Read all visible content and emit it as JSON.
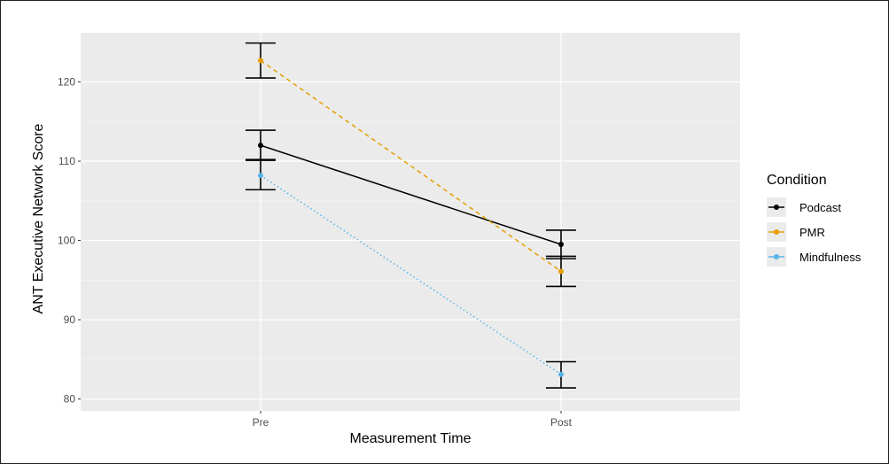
{
  "chart_data": {
    "type": "line",
    "xlabel": "Measurement Time",
    "ylabel": "ANT Executive Network Score",
    "categories": [
      "Pre",
      "Post"
    ],
    "ylim": [
      78.5,
      126.2
    ],
    "yticks": [
      80,
      90,
      100,
      110,
      120
    ],
    "grid": true,
    "legend": {
      "title": "Condition",
      "placement": "right"
    },
    "series": [
      {
        "name": "Podcast",
        "color": "#000000",
        "dash": "solid",
        "values": [
          112.0,
          99.5
        ],
        "err_low": [
          110.2,
          97.7
        ],
        "err_high": [
          113.9,
          101.3
        ]
      },
      {
        "name": "PMR",
        "color": "#E69F00",
        "dash": "dashed",
        "values": [
          122.7,
          96.1
        ],
        "err_low": [
          120.5,
          94.2
        ],
        "err_high": [
          124.9,
          98.0
        ]
      },
      {
        "name": "Mindfulness",
        "color": "#56B4E9",
        "dash": "dotted",
        "values": [
          108.2,
          83.1
        ],
        "err_low": [
          106.4,
          81.4
        ],
        "err_high": [
          110.1,
          84.7
        ]
      }
    ]
  }
}
